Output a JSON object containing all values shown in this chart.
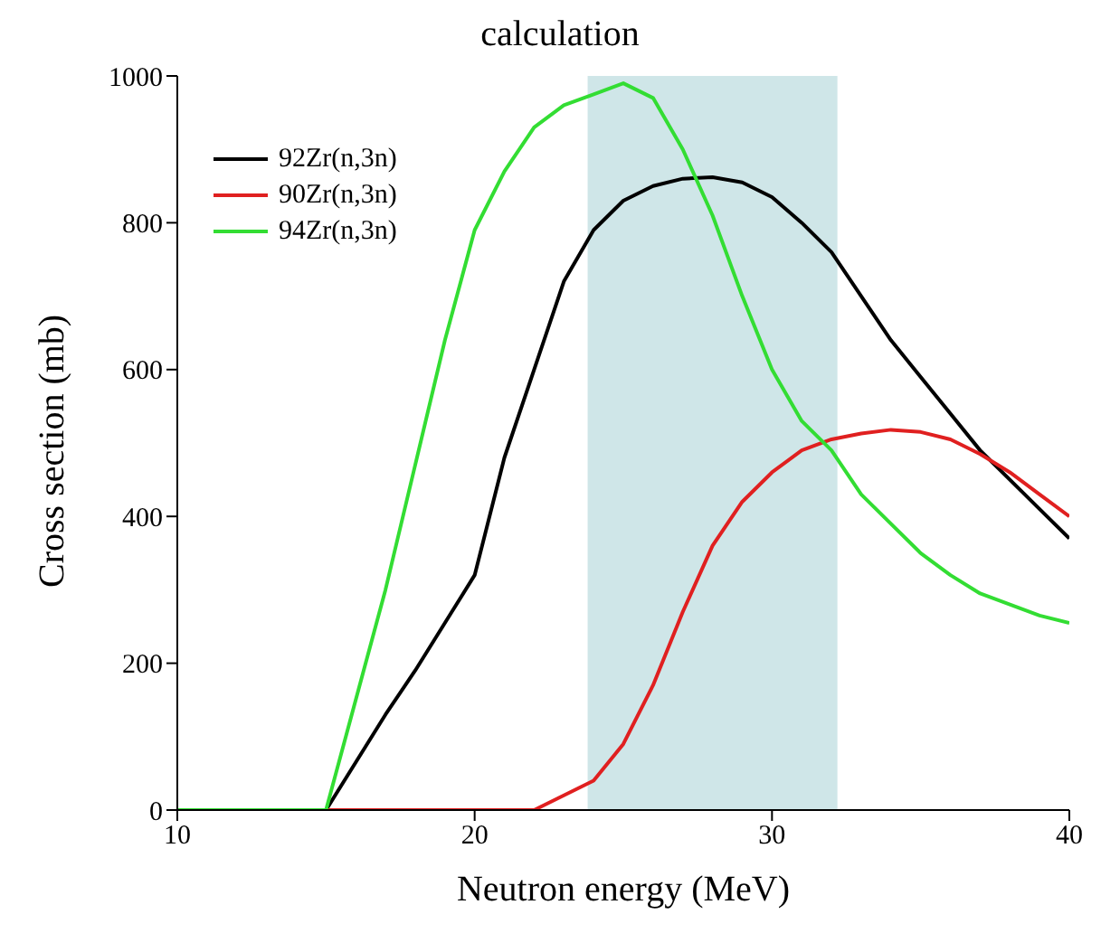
{
  "chart_data": {
    "type": "line",
    "title": "calculation",
    "xlabel": "Neutron energy (MeV)",
    "ylabel": "Cross section (mb)",
    "x": [
      10,
      15,
      17,
      18,
      19,
      20,
      21,
      22,
      23,
      24,
      25,
      26,
      27,
      28,
      29,
      30,
      31,
      32,
      33,
      34,
      35,
      36,
      37,
      38,
      39,
      40
    ],
    "series": [
      {
        "name": "92Zr(n,3n)",
        "color": "#000000",
        "values": [
          0,
          0,
          130,
          190,
          255,
          320,
          480,
          600,
          720,
          790,
          830,
          850,
          860,
          862,
          855,
          835,
          800,
          760,
          700,
          640,
          590,
          540,
          490,
          450,
          410,
          370
        ]
      },
      {
        "name": "90Zr(n,3n)",
        "color": "#e02020",
        "values": [
          0,
          0,
          0,
          0,
          0,
          0,
          0,
          0,
          20,
          40,
          90,
          170,
          270,
          360,
          420,
          460,
          490,
          505,
          513,
          518,
          515,
          505,
          485,
          460,
          430,
          400
        ]
      },
      {
        "name": "94Zr(n,3n)",
        "color": "#33dd33",
        "values": [
          0,
          0,
          300,
          470,
          640,
          790,
          870,
          930,
          960,
          975,
          990,
          970,
          900,
          810,
          700,
          600,
          530,
          490,
          430,
          390,
          350,
          320,
          295,
          280,
          265,
          255
        ]
      }
    ],
    "xlim": [
      10,
      40
    ],
    "xticks": [
      10,
      20,
      30,
      40
    ],
    "ylim": [
      0,
      1000
    ],
    "yticks": [
      0,
      200,
      400,
      600,
      800,
      1000
    ],
    "bands": [
      {
        "axis": "x",
        "from": 23.8,
        "to": 32.2,
        "color": "#cfe6e8"
      }
    ],
    "grid": false,
    "legend": "top left",
    "marker": "none",
    "line_style": "solid"
  }
}
